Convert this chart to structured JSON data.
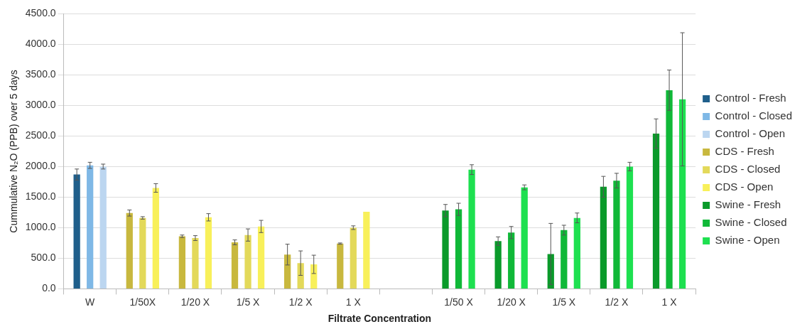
{
  "chart_data": {
    "type": "bar",
    "xlabel": "Filtrate Concentration",
    "ylabel": "Cummulative N₂O (PPB) over 5 days",
    "categories": [
      "W",
      "1/50X",
      "1/20 X",
      "1/5 X",
      "1/2 X",
      "1 X",
      null,
      "1/50 X",
      "1/20 X",
      "1/5 X",
      "1/2 X",
      "1 X"
    ],
    "series": [
      {
        "name": "Control - Fresh",
        "color": "#1f5f8b",
        "values": [
          1870,
          null,
          null,
          null,
          null,
          null,
          null,
          null,
          null,
          null,
          null,
          null
        ],
        "errors": [
          90,
          null,
          null,
          null,
          null,
          null,
          null,
          null,
          null,
          null,
          null,
          null
        ]
      },
      {
        "name": "Control - Closed",
        "color": "#7fb8e6",
        "values": [
          2020,
          null,
          null,
          null,
          null,
          null,
          null,
          null,
          null,
          null,
          null,
          null
        ],
        "errors": [
          50,
          null,
          null,
          null,
          null,
          null,
          null,
          null,
          null,
          null,
          null,
          null
        ]
      },
      {
        "name": "Control - Open",
        "color": "#bcd6f0",
        "values": [
          2000,
          null,
          null,
          null,
          null,
          null,
          null,
          null,
          null,
          null,
          null,
          null
        ],
        "errors": [
          40,
          null,
          null,
          null,
          null,
          null,
          null,
          null,
          null,
          null,
          null,
          null
        ]
      },
      {
        "name": "CDS - Fresh",
        "color": "#c8b83e",
        "values": [
          null,
          1240,
          860,
          760,
          560,
          740,
          null,
          null,
          null,
          null,
          null,
          null
        ],
        "errors": [
          null,
          50,
          20,
          40,
          170,
          10,
          null,
          null,
          null,
          null,
          null,
          null
        ]
      },
      {
        "name": "CDS - Closed",
        "color": "#e3d95a",
        "values": [
          null,
          1160,
          830,
          880,
          420,
          1000,
          null,
          null,
          null,
          null,
          null,
          null
        ],
        "errors": [
          null,
          20,
          40,
          100,
          200,
          30,
          null,
          null,
          null,
          null,
          null,
          null
        ]
      },
      {
        "name": "CDS - Open",
        "color": "#f8f05a",
        "values": [
          null,
          1650,
          1170,
          1020,
          400,
          1260,
          null,
          null,
          null,
          null,
          null,
          null
        ],
        "errors": [
          null,
          70,
          60,
          100,
          150,
          null,
          null,
          null,
          null,
          null,
          null,
          null
        ]
      },
      {
        "name": "Swine - Fresh",
        "color": "#0a9a2a",
        "values": [
          null,
          null,
          null,
          null,
          null,
          null,
          null,
          1280,
          780,
          570,
          1670,
          2540
        ],
        "errors": [
          null,
          null,
          null,
          null,
          null,
          null,
          null,
          100,
          70,
          500,
          170,
          240
        ]
      },
      {
        "name": "Swine - Closed",
        "color": "#10b838",
        "values": [
          null,
          null,
          null,
          null,
          null,
          null,
          null,
          1300,
          920,
          960,
          1770,
          3250
        ],
        "errors": [
          null,
          null,
          null,
          null,
          null,
          null,
          null,
          100,
          100,
          80,
          120,
          330
        ]
      },
      {
        "name": "Swine - Open",
        "color": "#1ee050",
        "values": [
          null,
          null,
          null,
          null,
          null,
          null,
          null,
          1950,
          1660,
          1160,
          2000,
          3100
        ],
        "errors": [
          null,
          null,
          null,
          null,
          null,
          null,
          null,
          80,
          40,
          80,
          70,
          1090
        ]
      }
    ],
    "ylim": [
      0,
      4500
    ],
    "yticks": [
      {
        "value": 0,
        "label": "0.0"
      },
      {
        "value": 500,
        "label": "500.0"
      },
      {
        "value": 1000,
        "label": "1000.0"
      },
      {
        "value": 1500,
        "label": "1500.0"
      },
      {
        "value": 2000,
        "label": "2000.0"
      },
      {
        "value": 2500,
        "label": "2500.0"
      },
      {
        "value": 3000,
        "label": "3000.0"
      },
      {
        "value": 3500,
        "label": "3500.0"
      },
      {
        "value": 4000,
        "label": "4000.0"
      },
      {
        "value": 4500,
        "label": "4500.0"
      }
    ],
    "grid": "y",
    "legend": "right"
  }
}
